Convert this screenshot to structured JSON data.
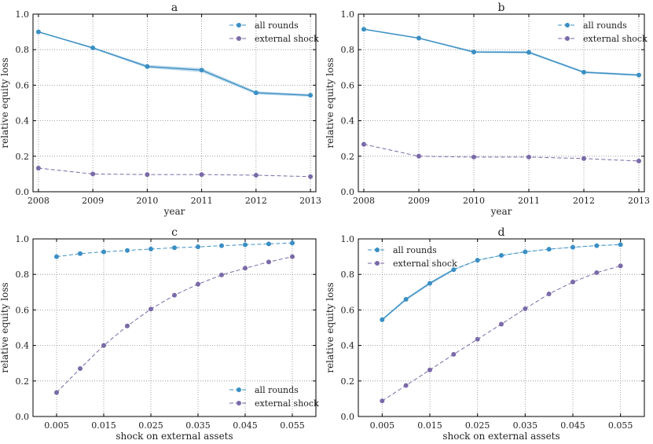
{
  "colors": {
    "all_rounds": "#3a8fc4",
    "band": "#a9cfe6",
    "external_shock": "#7a6aa8"
  },
  "chart_data": [
    {
      "id": "a",
      "type": "line",
      "title": "a",
      "xlabel": "year",
      "ylabel": "relative equity loss",
      "x_ticks": [
        "2008",
        "2009",
        "2010",
        "2011",
        "2012",
        "2013"
      ],
      "y_ticks": [
        "0.0",
        "0.2",
        "0.4",
        "0.6",
        "0.8",
        "1.0"
      ],
      "xlim": [
        2007.9,
        2013.1
      ],
      "ylim": [
        0,
        1
      ],
      "legend_position": "top-right",
      "grid": true,
      "x": [
        2008,
        2009,
        2010,
        2011,
        2012,
        2013
      ],
      "series": [
        {
          "name": "all rounds",
          "key": "all_rounds",
          "values": [
            0.9,
            0.81,
            0.705,
            0.685,
            0.557,
            0.543
          ],
          "band": [
            0.003,
            0.005,
            0.009,
            0.012,
            0.009,
            0.008
          ],
          "dashed": false
        },
        {
          "name": "external shock",
          "key": "external_shock",
          "values": [
            0.133,
            0.1,
            0.097,
            0.097,
            0.093,
            0.085
          ],
          "dashed": true
        }
      ]
    },
    {
      "id": "b",
      "type": "line",
      "title": "b",
      "xlabel": "year",
      "ylabel": "relative equity loss",
      "x_ticks": [
        "2008",
        "2009",
        "2010",
        "2011",
        "2012",
        "2013"
      ],
      "y_ticks": [
        "0.0",
        "0.2",
        "0.4",
        "0.6",
        "0.8",
        "1.0"
      ],
      "xlim": [
        2007.9,
        2013.1
      ],
      "ylim": [
        0,
        1
      ],
      "legend_position": "top-right",
      "grid": true,
      "x": [
        2008,
        2009,
        2010,
        2011,
        2012,
        2013
      ],
      "series": [
        {
          "name": "all rounds",
          "key": "all_rounds",
          "values": [
            0.915,
            0.865,
            0.787,
            0.785,
            0.673,
            0.657
          ],
          "band": [
            0.003,
            0.004,
            0.006,
            0.007,
            0.006,
            0.006
          ],
          "dashed": false
        },
        {
          "name": "external shock",
          "key": "external_shock",
          "values": [
            0.267,
            0.2,
            0.195,
            0.195,
            0.187,
            0.173
          ],
          "dashed": true
        }
      ]
    },
    {
      "id": "c",
      "type": "line",
      "title": "c",
      "xlabel": "shock on external assets",
      "ylabel": "relative equity loss",
      "x_ticks": [
        "0.005",
        "0.015",
        "0.025",
        "0.035",
        "0.045",
        "0.055"
      ],
      "y_ticks": [
        "0.0",
        "0.2",
        "0.4",
        "0.6",
        "0.8",
        "1.0"
      ],
      "xlim": [
        0,
        0.06
      ],
      "ylim": [
        0,
        1
      ],
      "legend_position": "bottom-right",
      "grid": true,
      "x": [
        0.005,
        0.01,
        0.015,
        0.02,
        0.025,
        0.03,
        0.035,
        0.04,
        0.045,
        0.05,
        0.055
      ],
      "series": [
        {
          "name": "all rounds",
          "key": "all_rounds",
          "values": [
            0.9,
            0.917,
            0.927,
            0.935,
            0.943,
            0.95,
            0.955,
            0.962,
            0.967,
            0.972,
            0.977
          ],
          "dashed": true
        },
        {
          "name": "external shock",
          "key": "external_shock",
          "values": [
            0.135,
            0.27,
            0.4,
            0.51,
            0.605,
            0.683,
            0.745,
            0.797,
            0.835,
            0.87,
            0.9
          ],
          "dashed": true
        }
      ]
    },
    {
      "id": "d",
      "type": "line",
      "title": "d",
      "xlabel": "shock on external assets",
      "ylabel": "relative equity loss",
      "x_ticks": [
        "0.005",
        "0.015",
        "0.025",
        "0.035",
        "0.045",
        "0.055"
      ],
      "y_ticks": [
        "0.0",
        "0.2",
        "0.4",
        "0.6",
        "0.8",
        "1.0"
      ],
      "xlim": [
        0,
        0.06
      ],
      "ylim": [
        0,
        1
      ],
      "legend_position": "top-left",
      "grid": true,
      "x": [
        0.005,
        0.01,
        0.015,
        0.02,
        0.025,
        0.03,
        0.035,
        0.04,
        0.045,
        0.05,
        0.055
      ],
      "series": [
        {
          "name": "all rounds",
          "key": "all_rounds",
          "values": [
            0.545,
            0.66,
            0.75,
            0.827,
            0.88,
            0.907,
            0.927,
            0.942,
            0.953,
            0.962,
            0.968
          ],
          "band": [
            0.006,
            0.007,
            0.008,
            0.006,
            0.004,
            0.003,
            0.003,
            0.002,
            0.002,
            0.002,
            0.002
          ],
          "solid_until": 3,
          "dashed": true
        },
        {
          "name": "external shock",
          "key": "external_shock",
          "values": [
            0.088,
            0.175,
            0.262,
            0.35,
            0.435,
            0.52,
            0.607,
            0.69,
            0.757,
            0.81,
            0.848
          ],
          "dashed": true
        }
      ]
    }
  ]
}
